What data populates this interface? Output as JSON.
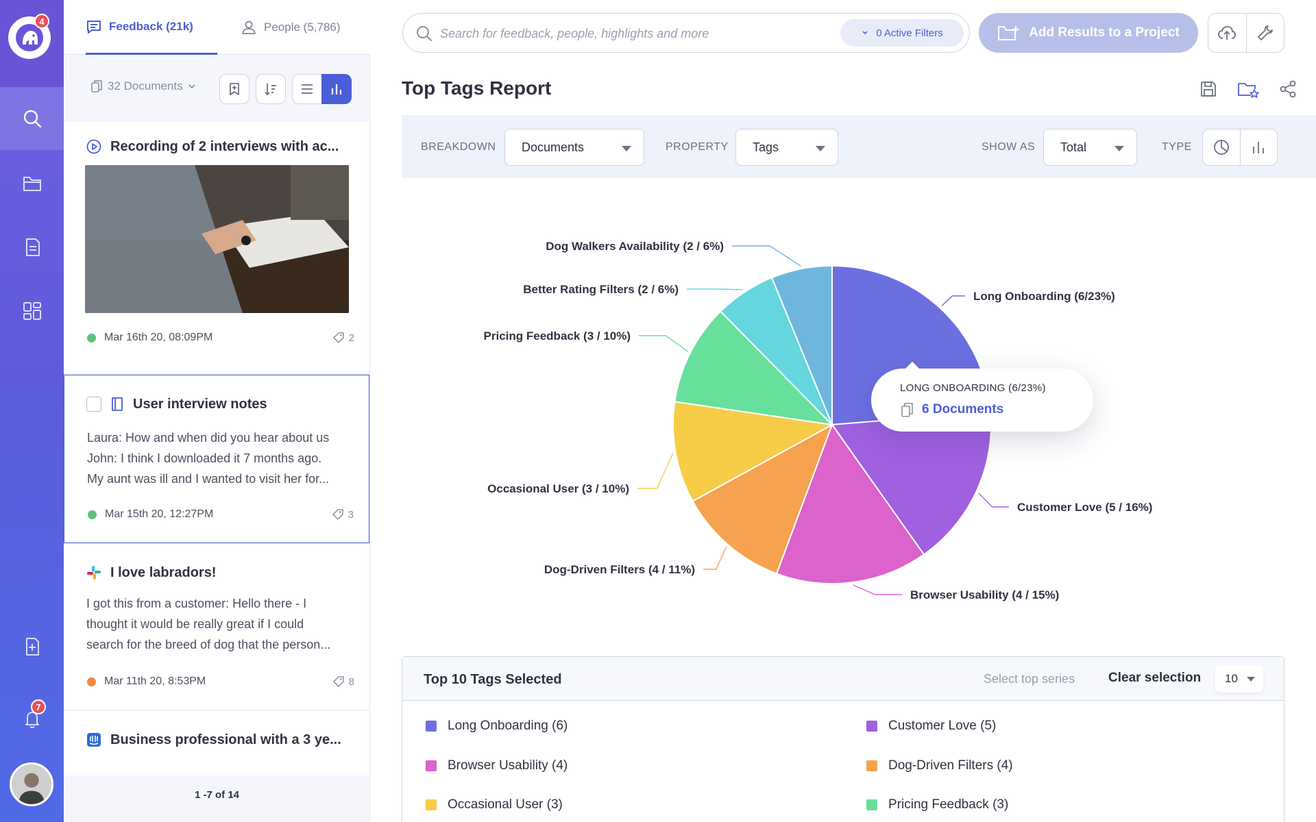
{
  "nav": {
    "logo_badge": "4",
    "notifications_badge": "7",
    "items": [
      {
        "icon": "search-icon",
        "active": true
      },
      {
        "icon": "folder-icon",
        "active": false
      },
      {
        "icon": "document-icon",
        "active": false
      },
      {
        "icon": "dashboard-icon",
        "active": false
      }
    ]
  },
  "feed": {
    "tab_feedback": "Feedback (21k)",
    "tab_people": "People (5,786)",
    "documents_select": "32 Documents",
    "cards": [
      {
        "title": "Recording of 2 interviews with ac...",
        "date": "Mar 16th 20, 08:09PM",
        "count": "2",
        "dot_color": "#5cc27a",
        "icon": "play-circle-icon"
      },
      {
        "title": "User interview notes",
        "body": [
          "Laura: How and when did you hear about us",
          "John:  I think I downloaded it 7 months ago.",
          "My aunt was ill and I wanted to visit her for..."
        ],
        "date": "Mar 15th 20, 12:27PM",
        "count": "3",
        "dot_color": "#5cc27a",
        "icon": "note-icon"
      },
      {
        "title": "I love labradors!",
        "body": [
          "I got this from a customer: Hello there - I",
          "thought it would be really great if I could",
          "search for the breed of dog that the person..."
        ],
        "date": "Mar 11th 20, 8:53PM",
        "count": "8",
        "dot_color": "#f08a3c",
        "icon": "slack-icon"
      },
      {
        "title": "Business professional with a 3 ye...",
        "icon": "intercom-icon"
      }
    ],
    "pager": "1 -7 of 14"
  },
  "header": {
    "search_placeholder": "Search for feedback, people, highlights and more",
    "filters": "0 Active Filters",
    "add_button": "Add Results to a Project"
  },
  "report": {
    "title": "Top Tags Report",
    "breakdown_label": "BREAKDOWN",
    "breakdown_value": "Documents",
    "property_label": "PROPERTY",
    "property_value": "Tags",
    "show_as_label": "SHOW AS",
    "show_as_value": "Total",
    "type_label": "TYPE"
  },
  "tooltip": {
    "title": "LONG ONBOARDING (6/23%)",
    "value": "6 Documents"
  },
  "chart_data": {
    "type": "pie",
    "title": "",
    "slices": [
      {
        "label": "Long Onboarding (6/23%)",
        "value": 6,
        "percent": 23,
        "color": "#6b6fe0"
      },
      {
        "label": "Customer Love (5 / 16%)",
        "value": 5,
        "percent": 16,
        "color": "#a060e0"
      },
      {
        "label": "Browser Usability (4 / 15%)",
        "value": 4,
        "percent": 15,
        "color": "#dc62cc"
      },
      {
        "label": "Dog-Driven Filters (4 / 11%)",
        "value": 4,
        "percent": 11,
        "color": "#f7a24e"
      },
      {
        "label": "Occasional User (3 / 10%)",
        "value": 3,
        "percent": 10,
        "color": "#f7cd47"
      },
      {
        "label": "Pricing Feedback (3 / 10%)",
        "value": 3,
        "percent": 10,
        "color": "#66e09a"
      },
      {
        "label": "Better Rating Filters (2 / 6%)",
        "value": 2,
        "percent": 6,
        "color": "#63d6de"
      },
      {
        "label": "Dog Walkers Availability (2 / 6%)",
        "value": 2,
        "percent": 6,
        "color": "#6fb6dd"
      }
    ]
  },
  "legend": {
    "title": "Top 10 Tags Selected",
    "select_top": "Select top series",
    "clear": "Clear selection",
    "count": "10",
    "items": [
      {
        "label": "Long Onboarding (6)",
        "color": "#6b6fe0"
      },
      {
        "label": "Customer Love (5)",
        "color": "#a060e0"
      },
      {
        "label": "Browser Usability (4)",
        "color": "#dc62cc"
      },
      {
        "label": "Dog-Driven Filters (4)",
        "color": "#f7a24e"
      },
      {
        "label": "Occasional User (3)",
        "color": "#f7cd47"
      },
      {
        "label": "Pricing Feedback (3)",
        "color": "#66e09a"
      }
    ]
  }
}
